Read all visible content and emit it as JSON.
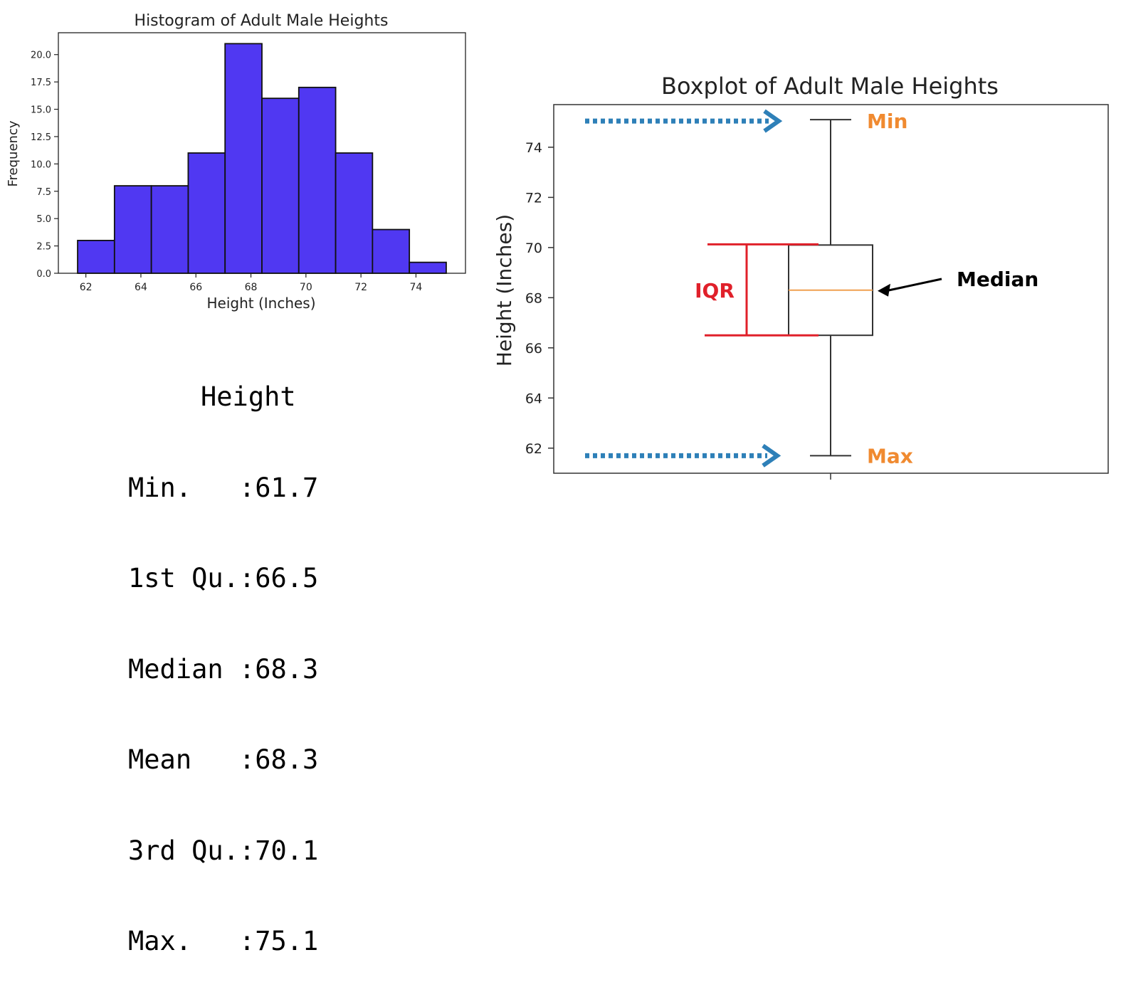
{
  "chart_data": [
    {
      "type": "bar",
      "title": "Histogram of Adult Male Heights",
      "xlabel": "Height (Inches)",
      "ylabel": "Frequency",
      "bins": [
        {
          "start": 61.7,
          "end": 63.04,
          "count": 3
        },
        {
          "start": 63.04,
          "end": 64.38,
          "count": 8
        },
        {
          "start": 64.38,
          "end": 65.72,
          "count": 8
        },
        {
          "start": 65.72,
          "end": 67.06,
          "count": 11
        },
        {
          "start": 67.06,
          "end": 68.4,
          "count": 21
        },
        {
          "start": 68.4,
          "end": 69.74,
          "count": 16
        },
        {
          "start": 69.74,
          "end": 71.08,
          "count": 17
        },
        {
          "start": 71.08,
          "end": 72.42,
          "count": 11
        },
        {
          "start": 72.42,
          "end": 73.76,
          "count": 4
        },
        {
          "start": 73.76,
          "end": 75.1,
          "count": 1
        }
      ],
      "xlim": [
        61.0,
        75.8
      ],
      "ylim": [
        0,
        22
      ],
      "xticks": [
        62,
        64,
        66,
        68,
        70,
        72,
        74
      ],
      "yticks": [
        "0.0",
        "2.5",
        "5.0",
        "7.5",
        "10.0",
        "12.5",
        "15.0",
        "17.5",
        "20.0"
      ],
      "colors": {
        "bar": "#5038f2",
        "edge": "#111111"
      }
    },
    {
      "type": "boxplot",
      "title": "Boxplot of Adult Male Heights",
      "ylabel": "Height (Inches)",
      "stats": {
        "min": 61.7,
        "q1": 66.5,
        "median": 68.3,
        "q3": 70.1,
        "max": 75.1
      },
      "ylim": [
        61.0,
        75.7
      ],
      "yticks": [
        62,
        64,
        66,
        68,
        70,
        72,
        74
      ],
      "annotations": {
        "top_label": "Min",
        "bottom_label": "Max",
        "median_label": "Median",
        "iqr_label": "IQR"
      },
      "colors": {
        "median_line": "#f0a050",
        "iqr": "#e0202a",
        "minmax_text": "#f08a30",
        "arrow": "#2e80b8"
      }
    }
  ],
  "summary": {
    "header": "Height",
    "rows": [
      "Min.   :61.7",
      "1st Qu.:66.5",
      "Median :68.3",
      "Mean   :68.3",
      "3rd Qu.:70.1",
      "Max.   :75.1"
    ]
  }
}
